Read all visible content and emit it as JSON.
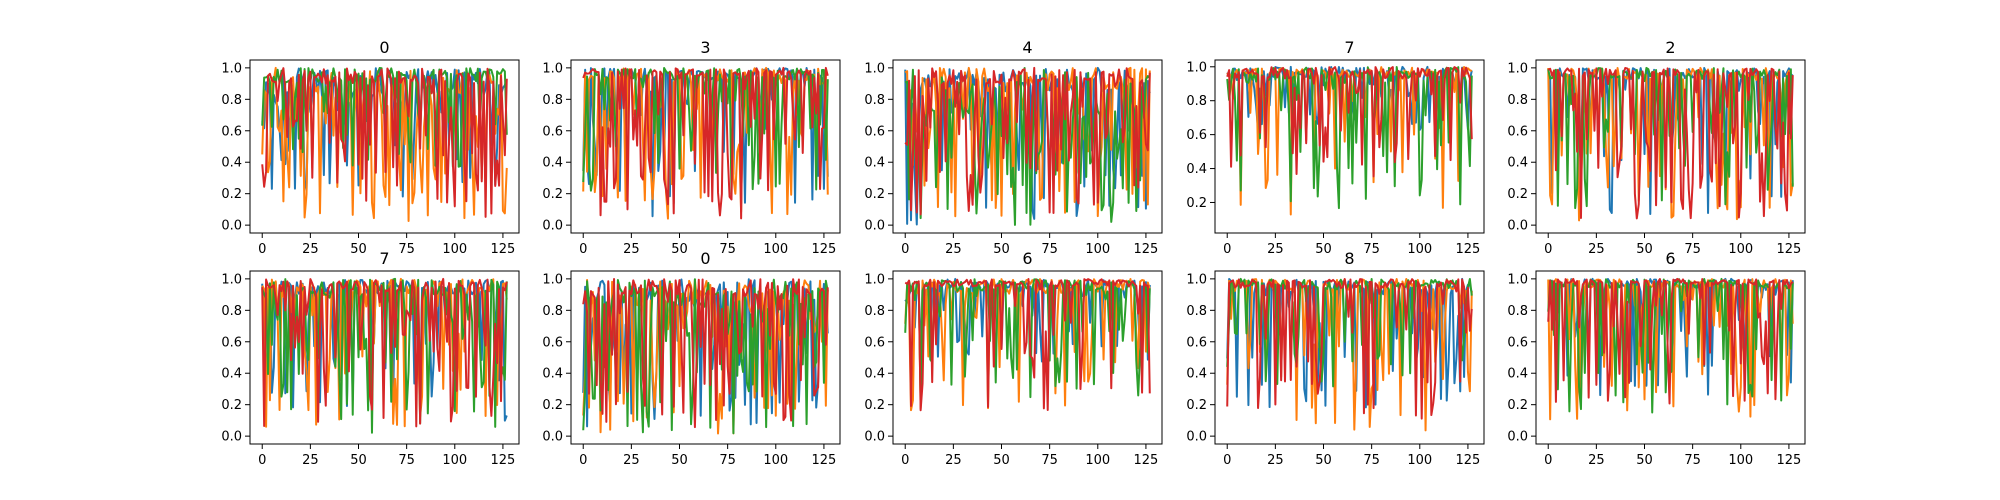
{
  "colors": {
    "series": [
      "#1f77b4",
      "#ff7f0e",
      "#2ca02c",
      "#d62728"
    ],
    "axis": "#000000",
    "background": "#ffffff"
  },
  "chart_data": [
    {
      "type": "line",
      "title": "0",
      "xlim": [
        -6.35,
        133.35
      ],
      "ylim": [
        -0.05,
        1.05
      ],
      "xticks": [
        0,
        25,
        50,
        75,
        100,
        125
      ],
      "yticks": [
        0.0,
        0.2,
        0.4,
        0.6,
        0.8,
        1.0
      ],
      "ytick_labels": [
        "0.0",
        "0.2",
        "0.4",
        "0.6",
        "0.8",
        "1.0"
      ],
      "x": {
        "start": 0,
        "end": 127,
        "count": 128
      },
      "series_profiles": [
        {
          "base": 0.82,
          "floor": 0.18,
          "dip_rate": 0.35
        },
        {
          "base": 0.7,
          "floor": 0.02,
          "dip_rate": 0.45
        },
        {
          "base": 0.9,
          "floor": 0.35,
          "dip_rate": 0.3
        },
        {
          "base": 0.9,
          "floor": 0.05,
          "dip_rate": 0.4
        }
      ]
    },
    {
      "type": "line",
      "title": "3",
      "xlim": [
        -6.35,
        133.35
      ],
      "ylim": [
        -0.05,
        1.05
      ],
      "xticks": [
        0,
        25,
        50,
        75,
        100,
        125
      ],
      "yticks": [
        0.0,
        0.2,
        0.4,
        0.6,
        0.8,
        1.0
      ],
      "ytick_labels": [
        "0.0",
        "0.2",
        "0.4",
        "0.6",
        "0.8",
        "1.0"
      ],
      "x": {
        "start": 0,
        "end": 127,
        "count": 128
      },
      "series_profiles": [
        {
          "base": 0.92,
          "floor": 0.05,
          "dip_rate": 0.35
        },
        {
          "base": 0.9,
          "floor": 0.02,
          "dip_rate": 0.4
        },
        {
          "base": 0.92,
          "floor": 0.2,
          "dip_rate": 0.3
        },
        {
          "base": 0.95,
          "floor": 0.02,
          "dip_rate": 0.5
        }
      ]
    },
    {
      "type": "line",
      "title": "4",
      "xlim": [
        -6.35,
        133.35
      ],
      "ylim": [
        -0.05,
        1.05
      ],
      "xticks": [
        0,
        25,
        50,
        75,
        100,
        125
      ],
      "yticks": [
        0.0,
        0.2,
        0.4,
        0.6,
        0.8,
        1.0
      ],
      "ytick_labels": [
        "0.0",
        "0.2",
        "0.4",
        "0.6",
        "0.8",
        "1.0"
      ],
      "x": {
        "start": 0,
        "end": 127,
        "count": 128
      },
      "series_profiles": [
        {
          "base": 0.85,
          "floor": 0.0,
          "dip_rate": 0.45
        },
        {
          "base": 0.85,
          "floor": 0.02,
          "dip_rate": 0.4
        },
        {
          "base": 0.7,
          "floor": 0.0,
          "dip_rate": 0.55
        },
        {
          "base": 0.9,
          "floor": 0.02,
          "dip_rate": 0.45
        }
      ]
    },
    {
      "type": "line",
      "title": "7",
      "xlim": [
        -6.35,
        133.35
      ],
      "ylim": [
        0.02,
        1.04
      ],
      "xticks": [
        0,
        25,
        50,
        75,
        100,
        125
      ],
      "yticks": [
        0.2,
        0.4,
        0.6,
        0.8,
        1.0
      ],
      "ytick_labels": [
        "0.2",
        "0.4",
        "0.6",
        "0.8",
        "1.0"
      ],
      "x": {
        "start": 0,
        "end": 127,
        "count": 128
      },
      "series_profiles": [
        {
          "base": 0.93,
          "floor": 0.62,
          "dip_rate": 0.3
        },
        {
          "base": 0.94,
          "floor": 0.1,
          "dip_rate": 0.25
        },
        {
          "base": 0.9,
          "floor": 0.15,
          "dip_rate": 0.35
        },
        {
          "base": 0.93,
          "floor": 0.35,
          "dip_rate": 0.3
        }
      ]
    },
    {
      "type": "line",
      "title": "2",
      "xlim": [
        -6.35,
        133.35
      ],
      "ylim": [
        -0.05,
        1.05
      ],
      "xticks": [
        0,
        25,
        50,
        75,
        100,
        125
      ],
      "yticks": [
        0.0,
        0.2,
        0.4,
        0.6,
        0.8,
        1.0
      ],
      "ytick_labels": [
        "0.0",
        "0.2",
        "0.4",
        "0.6",
        "0.8",
        "1.0"
      ],
      "x": {
        "start": 0,
        "end": 127,
        "count": 128
      },
      "series_profiles": [
        {
          "base": 0.92,
          "floor": 0.05,
          "dip_rate": 0.35
        },
        {
          "base": 0.92,
          "floor": 0.02,
          "dip_rate": 0.4
        },
        {
          "base": 0.93,
          "floor": 0.1,
          "dip_rate": 0.3
        },
        {
          "base": 0.95,
          "floor": 0.02,
          "dip_rate": 0.5
        }
      ]
    },
    {
      "type": "line",
      "title": "7",
      "xlim": [
        -6.35,
        133.35
      ],
      "ylim": [
        -0.05,
        1.05
      ],
      "xticks": [
        0,
        25,
        50,
        75,
        100,
        125
      ],
      "yticks": [
        0.0,
        0.2,
        0.4,
        0.6,
        0.8,
        1.0
      ],
      "ytick_labels": [
        "0.0",
        "0.2",
        "0.4",
        "0.6",
        "0.8",
        "1.0"
      ],
      "x": {
        "start": 0,
        "end": 127,
        "count": 128
      },
      "series_profiles": [
        {
          "base": 0.9,
          "floor": 0.08,
          "dip_rate": 0.3
        },
        {
          "base": 0.9,
          "floor": 0.02,
          "dip_rate": 0.4
        },
        {
          "base": 0.88,
          "floor": 0.0,
          "dip_rate": 0.4
        },
        {
          "base": 0.92,
          "floor": 0.02,
          "dip_rate": 0.45
        }
      ]
    },
    {
      "type": "line",
      "title": "0",
      "xlim": [
        -6.35,
        133.35
      ],
      "ylim": [
        -0.05,
        1.05
      ],
      "xticks": [
        0,
        25,
        50,
        75,
        100,
        125
      ],
      "yticks": [
        0.0,
        0.2,
        0.4,
        0.6,
        0.8,
        1.0
      ],
      "ytick_labels": [
        "0.0",
        "0.2",
        "0.4",
        "0.6",
        "0.8",
        "1.0"
      ],
      "x": {
        "start": 0,
        "end": 127,
        "count": 128
      },
      "series_profiles": [
        {
          "base": 0.85,
          "floor": 0.05,
          "dip_rate": 0.45
        },
        {
          "base": 0.8,
          "floor": 0.0,
          "dip_rate": 0.45
        },
        {
          "base": 0.82,
          "floor": 0.0,
          "dip_rate": 0.45
        },
        {
          "base": 0.9,
          "floor": 0.05,
          "dip_rate": 0.5
        }
      ]
    },
    {
      "type": "line",
      "title": "6",
      "xlim": [
        -6.35,
        133.35
      ],
      "ylim": [
        -0.05,
        1.05
      ],
      "xticks": [
        0,
        25,
        50,
        75,
        100,
        125
      ],
      "yticks": [
        0.0,
        0.2,
        0.4,
        0.6,
        0.8,
        1.0
      ],
      "ytick_labels": [
        "0.0",
        "0.2",
        "0.4",
        "0.6",
        "0.8",
        "1.0"
      ],
      "x": {
        "start": 0,
        "end": 127,
        "count": 128
      },
      "series_profiles": [
        {
          "base": 0.93,
          "floor": 0.45,
          "dip_rate": 0.3
        },
        {
          "base": 0.9,
          "floor": 0.15,
          "dip_rate": 0.35
        },
        {
          "base": 0.92,
          "floor": 0.2,
          "dip_rate": 0.35
        },
        {
          "base": 0.95,
          "floor": 0.15,
          "dip_rate": 0.3
        }
      ]
    },
    {
      "type": "line",
      "title": "8",
      "xlim": [
        -6.35,
        133.35
      ],
      "ylim": [
        -0.05,
        1.05
      ],
      "xticks": [
        0,
        25,
        50,
        75,
        100,
        125
      ],
      "yticks": [
        0.0,
        0.2,
        0.4,
        0.6,
        0.8,
        1.0
      ],
      "ytick_labels": [
        "0.0",
        "0.2",
        "0.4",
        "0.6",
        "0.8",
        "1.0"
      ],
      "x": {
        "start": 0,
        "end": 127,
        "count": 128
      },
      "series_profiles": [
        {
          "base": 0.9,
          "floor": 0.15,
          "dip_rate": 0.4
        },
        {
          "base": 0.92,
          "floor": 0.02,
          "dip_rate": 0.35
        },
        {
          "base": 0.93,
          "floor": 0.3,
          "dip_rate": 0.3
        },
        {
          "base": 0.94,
          "floor": 0.1,
          "dip_rate": 0.35
        }
      ]
    },
    {
      "type": "line",
      "title": "6",
      "xlim": [
        -6.35,
        133.35
      ],
      "ylim": [
        -0.05,
        1.05
      ],
      "xticks": [
        0,
        25,
        50,
        75,
        100,
        125
      ],
      "yticks": [
        0.0,
        0.2,
        0.4,
        0.6,
        0.8,
        1.0
      ],
      "ytick_labels": [
        "0.0",
        "0.2",
        "0.4",
        "0.6",
        "0.8",
        "1.0"
      ],
      "x": {
        "start": 0,
        "end": 127,
        "count": 128
      },
      "series_profiles": [
        {
          "base": 0.95,
          "floor": 0.25,
          "dip_rate": 0.3
        },
        {
          "base": 0.94,
          "floor": 0.1,
          "dip_rate": 0.35
        },
        {
          "base": 0.94,
          "floor": 0.15,
          "dip_rate": 0.3
        },
        {
          "base": 0.96,
          "floor": 0.2,
          "dip_rate": 0.4
        }
      ]
    }
  ]
}
